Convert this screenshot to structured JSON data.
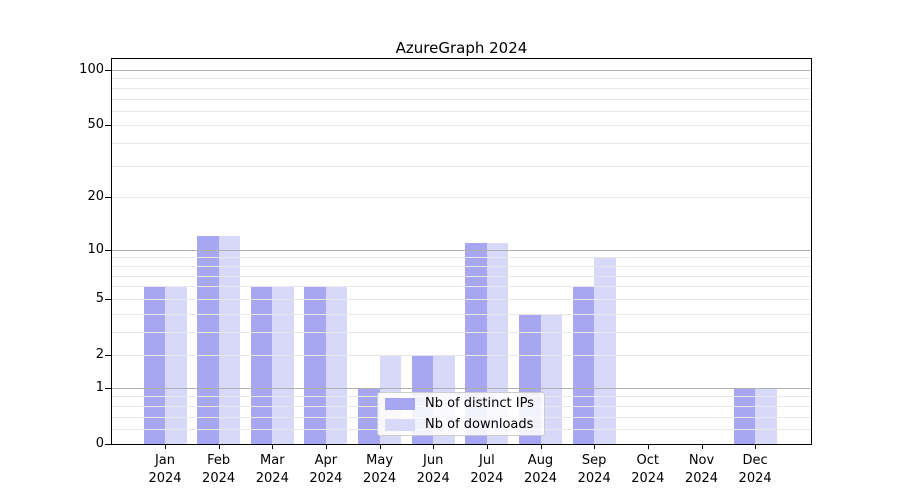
{
  "page": {
    "background": "#ffffff"
  },
  "chart_data": {
    "type": "bar",
    "title": "AzureGraph 2024",
    "categories": [
      "Jan 2024",
      "Feb 2024",
      "Mar 2024",
      "Apr 2024",
      "May 2024",
      "Jun 2024",
      "Jul 2024",
      "Aug 2024",
      "Sep 2024",
      "Oct 2024",
      "Nov 2024",
      "Dec 2024"
    ],
    "series": [
      {
        "name": "Nb of distinct IPs",
        "color": "#a6a6f2",
        "values": [
          6,
          12,
          6,
          6,
          1,
          2,
          11,
          4,
          6,
          0,
          0,
          1
        ]
      },
      {
        "name": "Nb of downloads",
        "color": "#d8d8f8",
        "values": [
          6,
          12,
          6,
          6,
          2,
          2,
          11,
          4,
          9,
          0,
          0,
          1
        ]
      }
    ],
    "yscale": "log1p",
    "ylim": [
      0,
      114.6
    ],
    "yticks": [
      0,
      1,
      2,
      5,
      10,
      20,
      50,
      100
    ],
    "major_gridlines": [
      1,
      10,
      100
    ],
    "minor_gridlines": [
      0.2,
      0.4,
      0.6,
      0.8,
      2,
      3,
      4,
      5,
      6,
      7,
      8,
      9,
      20,
      30,
      40,
      50,
      60,
      70,
      80,
      90
    ],
    "grid": true,
    "legend_position": "lower center"
  },
  "colors": {
    "major_grid": "#b0b0b0",
    "minor_grid": "#e8e8e8",
    "axis": "#000000",
    "legend_border": "#cccccc"
  }
}
